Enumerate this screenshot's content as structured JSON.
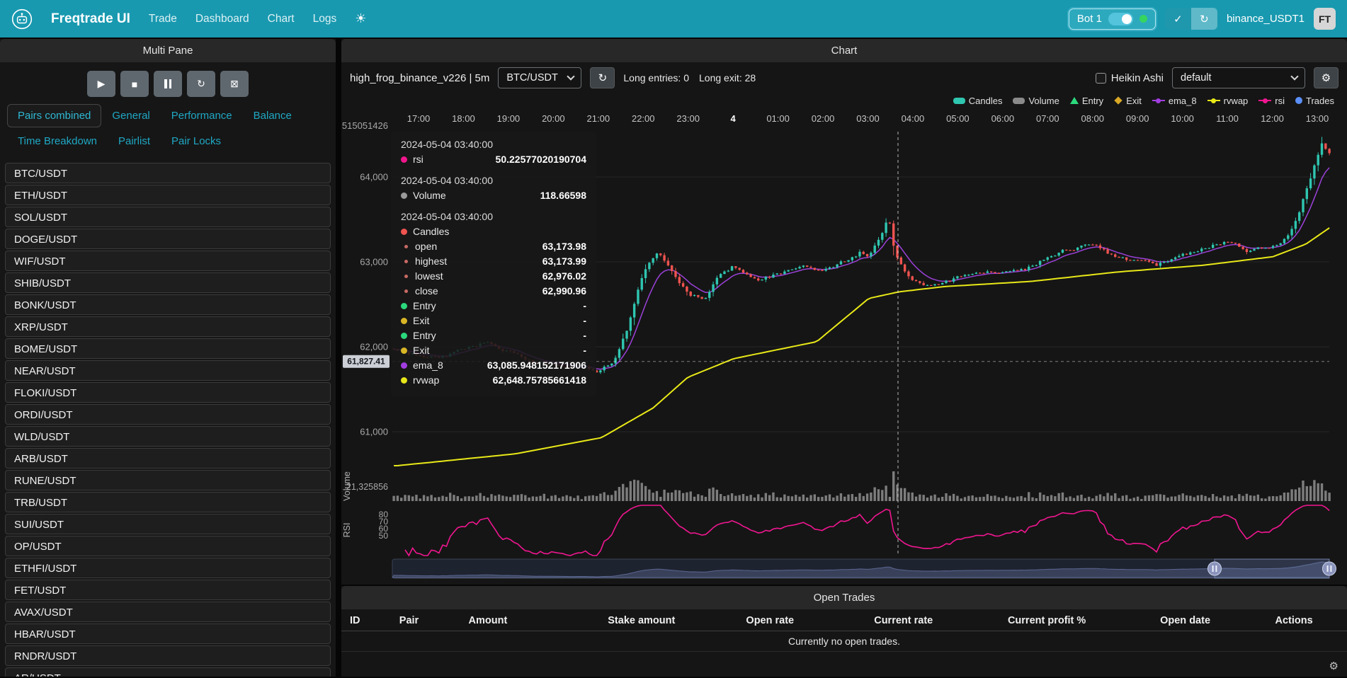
{
  "navbar": {
    "brand": "Freqtrade UI",
    "links": [
      "Trade",
      "Dashboard",
      "Chart",
      "Logs"
    ],
    "bot": {
      "label": "Bot 1",
      "status_color": "#35d55f"
    },
    "exchange_label": "binance_USDT1",
    "avatar_text": "FT"
  },
  "multi_pane": {
    "title": "Multi Pane",
    "controls": [
      "start",
      "stop",
      "pause",
      "reload",
      "forceexit"
    ],
    "tabs": [
      "Pairs combined",
      "General",
      "Performance",
      "Balance",
      "Time Breakdown",
      "Pairlist",
      "Pair Locks"
    ],
    "active_tab": "Pairs combined",
    "pairs": [
      "BTC/USDT",
      "ETH/USDT",
      "SOL/USDT",
      "DOGE/USDT",
      "WIF/USDT",
      "SHIB/USDT",
      "BONK/USDT",
      "XRP/USDT",
      "BOME/USDT",
      "NEAR/USDT",
      "FLOKI/USDT",
      "ORDI/USDT",
      "WLD/USDT",
      "ARB/USDT",
      "RUNE/USDT",
      "TRB/USDT",
      "SUI/USDT",
      "OP/USDT",
      "ETHFI/USDT",
      "FET/USDT",
      "AVAX/USDT",
      "HBAR/USDT",
      "RNDR/USDT",
      "AR/USDT"
    ]
  },
  "chart_panel": {
    "title": "Chart",
    "strategy_label": "high_frog_binance_v226 | 5m",
    "pair_select_value": "BTC/USDT",
    "signal_entries": "Long entries: 0",
    "signal_exits": "Long exit: 28",
    "heikin_ashi_label": "Heikin Ashi",
    "plot_config_value": "default",
    "legend": [
      {
        "label": "Candles",
        "marker": "rect",
        "color": "#2fc6b0"
      },
      {
        "label": "Volume",
        "marker": "rect",
        "color": "#8a8a8a"
      },
      {
        "label": "Entry",
        "marker": "triangle",
        "color": "#2bd97c"
      },
      {
        "label": "Exit",
        "marker": "diamond",
        "color": "#d9a926"
      },
      {
        "label": "ema_8",
        "marker": "line",
        "color": "#a13de0"
      },
      {
        "label": "rvwap",
        "marker": "line",
        "color": "#e8e818"
      },
      {
        "label": "rsi",
        "marker": "line",
        "color": "#f01690"
      },
      {
        "label": "Trades",
        "marker": "circle",
        "color": "#5b8ff9"
      }
    ],
    "tooltip": {
      "sections": [
        {
          "time": "2024-05-04 03:40:00",
          "rows": [
            {
              "dot": "#f0168c",
              "label": "rsi",
              "value": "50.22577020190704"
            }
          ]
        },
        {
          "time": "2024-05-04 03:40:00",
          "rows": [
            {
              "dot": "#9a9a9a",
              "label": "Volume",
              "value": "118.66598"
            }
          ]
        },
        {
          "time": "2024-05-04 03:40:00",
          "rows": [
            {
              "dot": "#ef5350",
              "label": "Candles",
              "value": ""
            },
            {
              "sub": true,
              "label": "open",
              "value": "63,173.98"
            },
            {
              "sub": true,
              "label": "highest",
              "value": "63,173.99"
            },
            {
              "sub": true,
              "label": "lowest",
              "value": "62,976.02"
            },
            {
              "sub": true,
              "label": "close",
              "value": "62,990.96"
            },
            {
              "dot": "#2bd97c",
              "label": "Entry",
              "value": "-"
            },
            {
              "dot": "#d9b626",
              "label": "Exit",
              "value": "-"
            },
            {
              "dot": "#2bd97c",
              "label": "Entry",
              "value": "-"
            },
            {
              "dot": "#d9b626",
              "label": "Exit",
              "value": "-"
            },
            {
              "dot": "#a13de0",
              "label": "ema_8",
              "value": "63,085.948152171906"
            },
            {
              "dot": "#e6e61a",
              "label": "rvwap",
              "value": "62,648.75785661418"
            }
          ]
        }
      ]
    }
  },
  "open_trades": {
    "title": "Open Trades",
    "columns": [
      "ID",
      "Pair",
      "Amount",
      "Stake amount",
      "Open rate",
      "Current rate",
      "Current profit %",
      "Open date",
      "Actions"
    ],
    "empty_text": "Currently no open trades."
  },
  "chart_data": {
    "type": "candlestick",
    "pair": "BTC/USDT",
    "timeframe": "5m",
    "title": "high_frog_binance_v226 | 5m",
    "x_labels": [
      "17:00",
      "18:00",
      "19:00",
      "20:00",
      "21:00",
      "22:00",
      "23:00",
      "4",
      "01:00",
      "02:00",
      "03:00",
      "04:00",
      "05:00",
      "06:00",
      "07:00",
      "08:00",
      "09:00",
      "10:00",
      "11:00",
      "12:00",
      "13:00"
    ],
    "price_ticks": [
      {
        "value": 64000,
        "label": "64,000"
      },
      {
        "value": 63000,
        "label": "63,000"
      },
      {
        "value": 62000,
        "label": "62,000"
      },
      {
        "value": 61000,
        "label": "61,000"
      }
    ],
    "price_axis_top_label": "515051426",
    "volume_axis_label": "21,325856",
    "volume_title": "Volume",
    "rsi_title": "RSI",
    "rsi_ticks": [
      80,
      70,
      60,
      50
    ],
    "series_colors": {
      "up": "#2fc6b0",
      "down": "#ef5350",
      "volume": "#8b8b8b",
      "ema_8": "#9b41d8",
      "rvwap": "#e8e818",
      "rsi": "#f01690"
    },
    "candle_count": 250,
    "close_path": [
      [
        -0.54,
        61950
      ],
      [
        0.49,
        61880
      ],
      [
        1.59,
        62060
      ],
      [
        2.38,
        61860
      ],
      [
        3.48,
        61760
      ],
      [
        4.02,
        61700
      ],
      [
        4.35,
        61850
      ],
      [
        4.67,
        62250
      ],
      [
        5.01,
        62900
      ],
      [
        5.34,
        63140
      ],
      [
        5.69,
        62860
      ],
      [
        6.0,
        62620
      ],
      [
        6.35,
        62560
      ],
      [
        6.67,
        62860
      ],
      [
        7.01,
        62960
      ],
      [
        7.5,
        62790
      ],
      [
        8.01,
        62860
      ],
      [
        8.53,
        62960
      ],
      [
        9.0,
        62880
      ],
      [
        9.5,
        63010
      ],
      [
        9.84,
        63120
      ],
      [
        10.02,
        63080
      ],
      [
        10.29,
        63280
      ],
      [
        10.45,
        63560
      ],
      [
        10.58,
        63180
      ],
      [
        10.69,
        62995
      ],
      [
        10.81,
        62900
      ],
      [
        11.02,
        62760
      ],
      [
        11.36,
        62700
      ],
      [
        11.68,
        62760
      ],
      [
        12.01,
        62810
      ],
      [
        12.47,
        62860
      ],
      [
        13.0,
        62860
      ],
      [
        13.49,
        62910
      ],
      [
        14.01,
        63060
      ],
      [
        14.52,
        63160
      ],
      [
        15.0,
        63240
      ],
      [
        15.46,
        63060
      ],
      [
        16.0,
        63000
      ],
      [
        16.41,
        62950
      ],
      [
        17.02,
        63060
      ],
      [
        17.51,
        63160
      ],
      [
        18.02,
        63250
      ],
      [
        18.46,
        63110
      ],
      [
        19.01,
        63160
      ],
      [
        19.37,
        63300
      ],
      [
        19.59,
        63520
      ],
      [
        19.8,
        63900
      ],
      [
        19.95,
        64150
      ],
      [
        20.11,
        64420
      ],
      [
        20.27,
        64280
      ]
    ],
    "rvwap_path": [
      [
        -0.47,
        60600
      ],
      [
        2.16,
        60740
      ],
      [
        4.07,
        60930
      ],
      [
        5.22,
        61280
      ],
      [
        5.99,
        61640
      ],
      [
        7.01,
        61860
      ],
      [
        8.86,
        62060
      ],
      [
        10.02,
        62570
      ],
      [
        10.7,
        62648
      ],
      [
        11.73,
        62710
      ],
      [
        13.63,
        62770
      ],
      [
        15.54,
        62880
      ],
      [
        17.46,
        62960
      ],
      [
        19.01,
        63060
      ],
      [
        19.75,
        63210
      ],
      [
        20.27,
        63400
      ]
    ],
    "crosshair": {
      "time": "2024-05-04 03:40:00",
      "hour": 10.67,
      "price": 61827.41,
      "price_label": "61,827.41"
    },
    "values_at_cursor": {
      "open": 63173.98,
      "high": 63173.99,
      "low": 62976.02,
      "close": 62990.96,
      "volume": 118.66598,
      "rsi": 50.22577020190704,
      "ema_8": 63085.948152171906,
      "rvwap": 62648.75785661418
    }
  }
}
